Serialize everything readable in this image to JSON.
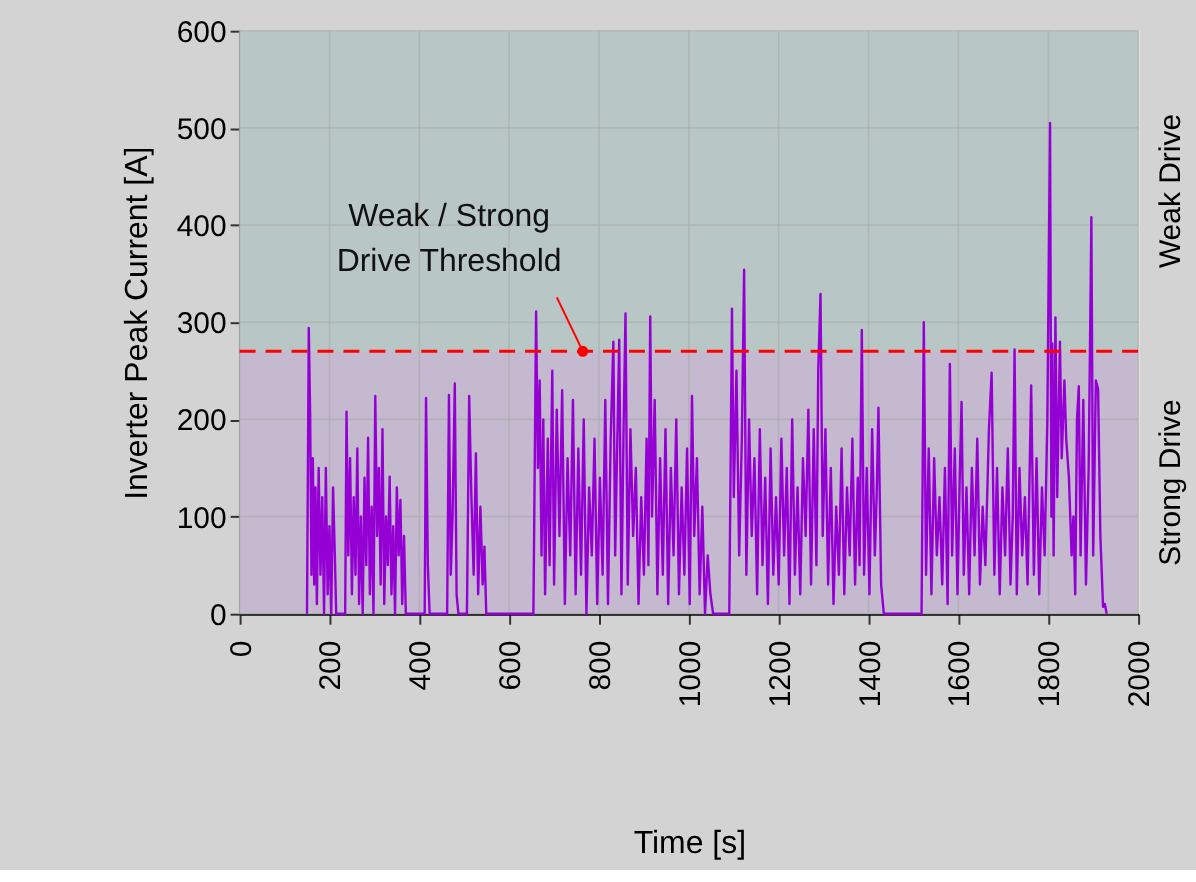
{
  "chart_data": {
    "type": "line",
    "xlabel": "Time [s]",
    "ylabel": "Inverter Peak Current [A]",
    "x": [
      150,
      154,
      157,
      160,
      163,
      166,
      169,
      172,
      176,
      180,
      184,
      188,
      192,
      196,
      200,
      204,
      208,
      212,
      215,
      235,
      238,
      242,
      246,
      250,
      254,
      258,
      262,
      266,
      270,
      274,
      278,
      282,
      286,
      290,
      294,
      298,
      302,
      306,
      310,
      314,
      318,
      322,
      326,
      330,
      334,
      338,
      342,
      346,
      350,
      354,
      358,
      362,
      366,
      370,
      412,
      415,
      419,
      423,
      462,
      466,
      470,
      474,
      479,
      483,
      487,
      506,
      511,
      516,
      521,
      526,
      531,
      536,
      541,
      545,
      549,
      654,
      660,
      664,
      668,
      672,
      676,
      680,
      686,
      690,
      696,
      700,
      706,
      712,
      718,
      724,
      730,
      736,
      742,
      748,
      754,
      760,
      766,
      772,
      778,
      784,
      790,
      796,
      802,
      808,
      814,
      820,
      826,
      832,
      836,
      840,
      845,
      850,
      855,
      859,
      864,
      870,
      876,
      882,
      888,
      894,
      900,
      906,
      910,
      914,
      918,
      924,
      930,
      936,
      942,
      948,
      954,
      960,
      966,
      972,
      978,
      984,
      990,
      996,
      1002,
      1007,
      1012,
      1018,
      1024,
      1030,
      1036,
      1042,
      1048,
      1054,
      1090,
      1096,
      1100,
      1106,
      1112,
      1118,
      1123,
      1128,
      1134,
      1140,
      1146,
      1152,
      1158,
      1164,
      1170,
      1176,
      1182,
      1188,
      1194,
      1200,
      1206,
      1212,
      1218,
      1224,
      1230,
      1236,
      1242,
      1248,
      1254,
      1260,
      1266,
      1272,
      1278,
      1284,
      1288,
      1293,
      1298,
      1304,
      1310,
      1316,
      1322,
      1328,
      1334,
      1340,
      1346,
      1352,
      1358,
      1364,
      1370,
      1376,
      1380,
      1385,
      1390,
      1396,
      1402,
      1408,
      1414,
      1418,
      1422,
      1428,
      1434,
      1518,
      1523,
      1528,
      1534,
      1540,
      1546,
      1552,
      1558,
      1564,
      1570,
      1576,
      1581,
      1586,
      1592,
      1598,
      1603,
      1607,
      1612,
      1618,
      1624,
      1630,
      1636,
      1642,
      1648,
      1654,
      1660,
      1668,
      1674,
      1680,
      1686,
      1692,
      1698,
      1704,
      1710,
      1716,
      1721,
      1725,
      1730,
      1736,
      1742,
      1748,
      1754,
      1762,
      1768,
      1774,
      1780,
      1786,
      1792,
      1798,
      1804,
      1807,
      1809,
      1812,
      1816,
      1820,
      1826,
      1830,
      1836,
      1840,
      1846,
      1852,
      1856,
      1860,
      1864,
      1868,
      1872,
      1878,
      1884,
      1890,
      1896,
      1900,
      1906,
      1911,
      1916,
      1922,
      1926,
      1930
    ],
    "series": [
      {
        "color": "#9400d3",
        "values": [
          0,
          294,
          206,
          40,
          160,
          30,
          130,
          10,
          150,
          40,
          120,
          0,
          150,
          20,
          90,
          0,
          130,
          60,
          0,
          0,
          208,
          60,
          160,
          20,
          120,
          40,
          170,
          10,
          100,
          0,
          140,
          50,
          181,
          20,
          110,
          0,
          224,
          80,
          150,
          30,
          190,
          10,
          100,
          50,
          141,
          20,
          90,
          0,
          130,
          60,
          117,
          10,
          80,
          0,
          0,
          222,
          50,
          0,
          0,
          225,
          40,
          100,
          237,
          20,
          0,
          0,
          224,
          120,
          40,
          165,
          20,
          110,
          30,
          69,
          0,
          0,
          311,
          150,
          240,
          60,
          200,
          20,
          180,
          50,
          250,
          30,
          210,
          80,
          230,
          10,
          160,
          60,
          220,
          20,
          170,
          40,
          200,
          0,
          130,
          60,
          180,
          10,
          140,
          40,
          220,
          10,
          180,
          280,
          60,
          160,
          282,
          20,
          200,
          309,
          30,
          190,
          80,
          150,
          10,
          120,
          40,
          180,
          50,
          306,
          100,
          220,
          20,
          160,
          40,
          190,
          10,
          150,
          60,
          200,
          20,
          130,
          40,
          170,
          10,
          224,
          80,
          160,
          20,
          110,
          0,
          60,
          20,
          0,
          0,
          314,
          120,
          250,
          60,
          180,
          354,
          40,
          200,
          80,
          160,
          20,
          190,
          50,
          140,
          10,
          170,
          40,
          120,
          30,
          180,
          60,
          150,
          10,
          200,
          40,
          130,
          20,
          160,
          80,
          210,
          30,
          190,
          50,
          250,
          329,
          80,
          190,
          30,
          150,
          10,
          110,
          40,
          170,
          20,
          130,
          60,
          180,
          30,
          140,
          50,
          292,
          40,
          150,
          20,
          190,
          60,
          120,
          212,
          30,
          0,
          0,
          300,
          40,
          170,
          20,
          160,
          60,
          120,
          30,
          150,
          10,
          257,
          60,
          170,
          20,
          140,
          218,
          40,
          130,
          20,
          150,
          60,
          180,
          30,
          110,
          50,
          190,
          248,
          40,
          150,
          20,
          130,
          60,
          170,
          30,
          100,
          272,
          20,
          150,
          60,
          120,
          30,
          235,
          40,
          160,
          20,
          130,
          60,
          200,
          505,
          100,
          278,
          60,
          305,
          120,
          280,
          160,
          240,
          180,
          140,
          60,
          100,
          20,
          200,
          234,
          60,
          220,
          30,
          150,
          408,
          60,
          240,
          231,
          80,
          7,
          10,
          0
        ]
      }
    ],
    "xlim": [
      0,
      2000
    ],
    "xticks": [
      0,
      200,
      400,
      600,
      800,
      1000,
      1200,
      1400,
      1600,
      1800,
      2000
    ],
    "ylim": [
      0,
      600
    ],
    "yticks": [
      0,
      100,
      200,
      300,
      400,
      500,
      600
    ],
    "grid": true,
    "bands": [
      {
        "axis": "y",
        "from": 270,
        "to": 600,
        "label": "Weak Drive",
        "color": "#b8c7c6"
      },
      {
        "axis": "y",
        "from": 0,
        "to": 270,
        "label": "Strong Drive",
        "color": "#c4b9cf"
      }
    ],
    "ref_lines": [
      {
        "axis": "y",
        "value": 270,
        "color": "#ff0000",
        "line_style": "dashed"
      }
    ],
    "annotations": [
      {
        "text": "Weak / Strong\nDrive Threshold",
        "x": 764,
        "y": 270
      }
    ]
  }
}
